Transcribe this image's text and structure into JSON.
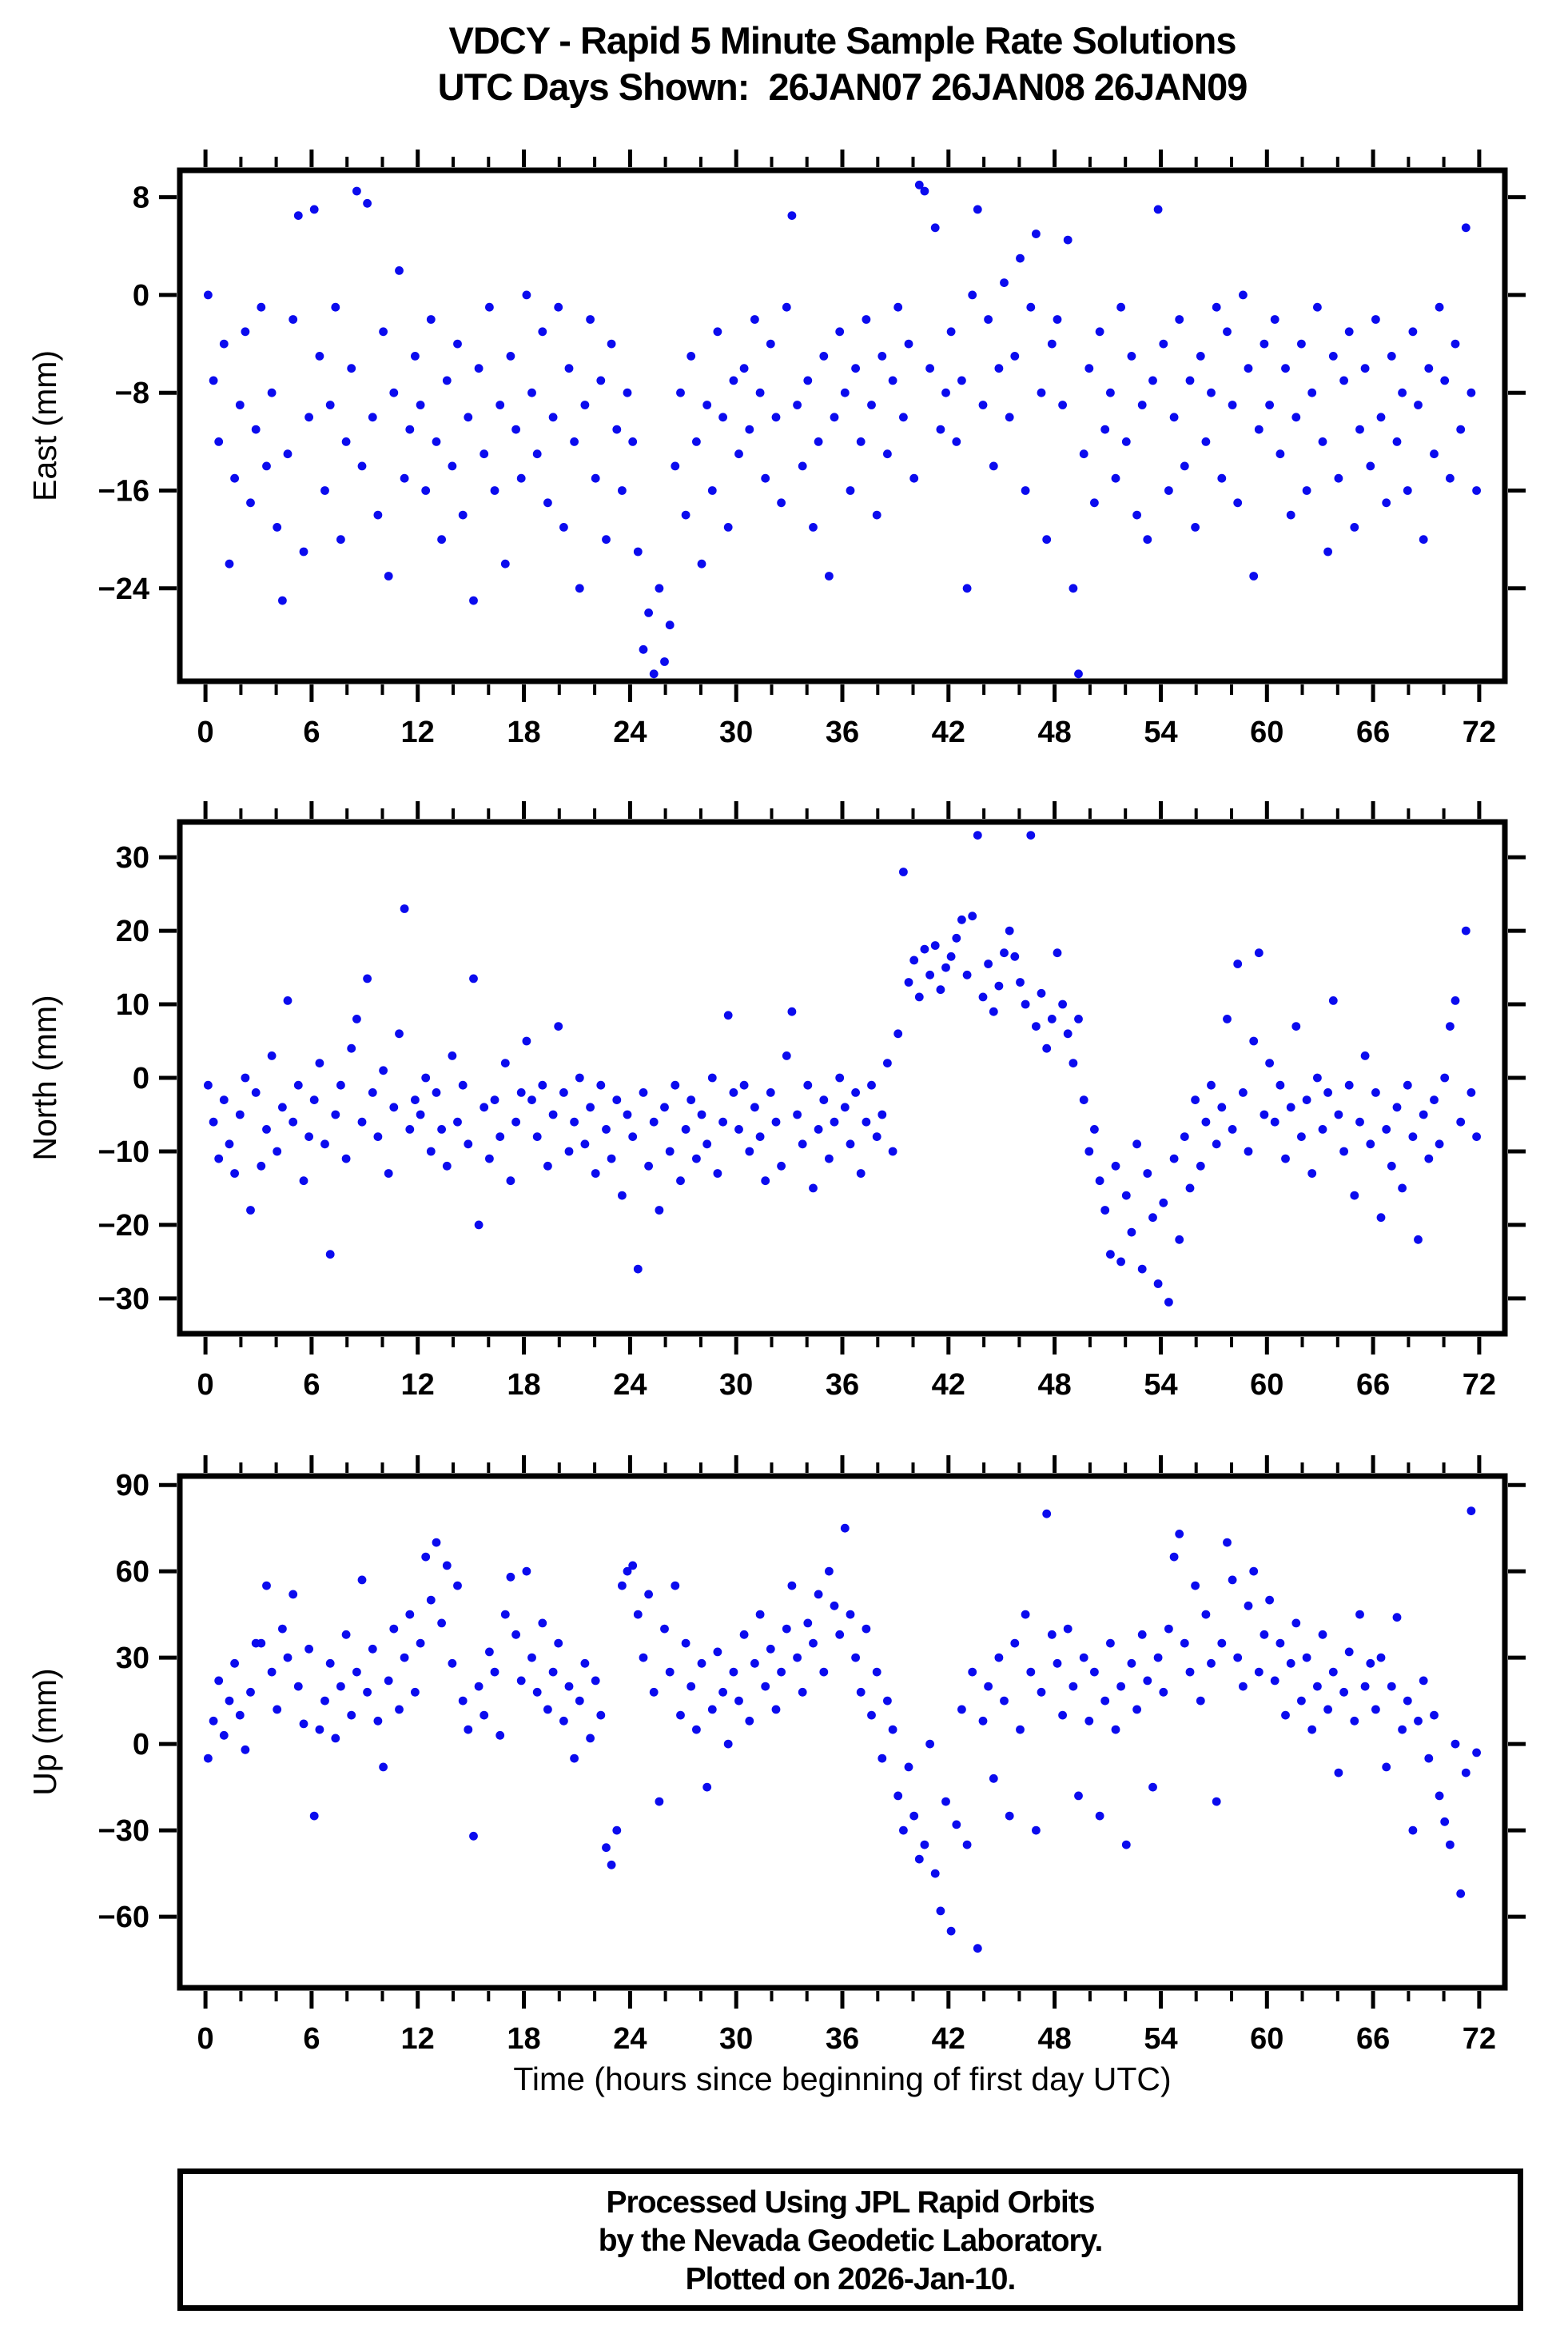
{
  "page": {
    "title_line1": "VDCY - Rapid 5 Minute Sample Rate Solutions",
    "title_line2": "UTC Days Shown:  26JAN07 26JAN08 26JAN09",
    "footer": {
      "line1": "Processed Using JPL Rapid Orbits",
      "line2": "by the Nevada Geodetic Laboratory.",
      "line3": "Plotted on 2026-Jan-10."
    }
  },
  "style": {
    "dot_color": "#0b0bee",
    "frame_color": "#000000",
    "background": "#ffffff"
  },
  "x_axis": {
    "lim": [
      -1.45,
      73.45
    ],
    "minor_step": 2,
    "major_ticks": [
      0,
      6,
      12,
      18,
      24,
      30,
      36,
      42,
      48,
      54,
      60,
      66,
      72
    ],
    "major_labels": [
      "0",
      "6",
      "12",
      "18",
      "24",
      "30",
      "36",
      "42",
      "48",
      "54",
      "60",
      "66",
      "72"
    ],
    "title": "Time (hours since beginning of first day UTC)"
  },
  "chart_data": [
    {
      "type": "scatter",
      "name": "east",
      "ylabel": "East (mm)",
      "ylim": [
        -31.6,
        10.2
      ],
      "yticks": [
        {
          "v": 8,
          "label": "8"
        },
        {
          "v": 0,
          "label": "0"
        },
        {
          "v": -8,
          "label": "−8"
        },
        {
          "v": -16,
          "label": "−16"
        },
        {
          "v": -24,
          "label": "−24"
        }
      ],
      "x_start": 0.15,
      "x_step": 0.3,
      "y": [
        0,
        -7,
        -12,
        -4,
        -22,
        -15,
        -9,
        -3,
        -17,
        -11,
        -1,
        -14,
        -8,
        -19,
        -25,
        -13,
        -2,
        6.5,
        -21,
        -10,
        7,
        -5,
        -16,
        -9,
        -1,
        -20,
        -12,
        -6,
        8.5,
        -14,
        7.5,
        -10,
        -18,
        -3,
        -23,
        -8,
        2,
        -15,
        -11,
        -5,
        -9,
        -16,
        -2,
        -12,
        -20,
        -7,
        -14,
        -4,
        -18,
        -10,
        -25,
        -6,
        -13,
        -1,
        -16,
        -9,
        -22,
        -5,
        -11,
        -15,
        0,
        -8,
        -13,
        -3,
        -17,
        -10,
        -1,
        -19,
        -6,
        -12,
        -24,
        -9,
        -2,
        -15,
        -7,
        -20,
        -4,
        -11,
        -16,
        -8,
        -12,
        -21,
        -29,
        -26,
        -31,
        -24,
        -30,
        -27,
        -14,
        -8,
        -18,
        -5,
        -12,
        -22,
        -9,
        -16,
        -3,
        -10,
        -19,
        -7,
        -13,
        -6,
        -11,
        -2,
        -8,
        -15,
        -4,
        -10,
        -17,
        -1,
        6.5,
        -9,
        -14,
        -7,
        -19,
        -12,
        -5,
        -23,
        -10,
        -3,
        -8,
        -16,
        -6,
        -12,
        -2,
        -9,
        -18,
        -5,
        -13,
        -7,
        -1,
        -10,
        -4,
        -15,
        9,
        8.5,
        -6,
        5.5,
        -11,
        -8,
        -3,
        -12,
        -7,
        -24,
        0,
        7,
        -9,
        -2,
        -14,
        -6,
        1,
        -10,
        -5,
        3,
        -16,
        -1,
        5,
        -8,
        -20,
        -4,
        -2,
        -9,
        4.5,
        -24,
        -31,
        -13,
        -6,
        -17,
        -3,
        -11,
        -8,
        -15,
        -1,
        -12,
        -5,
        -18,
        -9,
        -20,
        -7,
        7,
        -4,
        -16,
        -10,
        -2,
        -14,
        -7,
        -19,
        -5,
        -12,
        -8,
        -1,
        -15,
        -3,
        -9,
        -17,
        0,
        -6,
        -23,
        -11,
        -4,
        -9,
        -2,
        -13,
        -6,
        -18,
        -10,
        -4,
        -16,
        -8,
        -1,
        -12,
        -21,
        -5,
        -15,
        -7,
        -3,
        -19,
        -11,
        -6,
        -14,
        -2,
        -10,
        -17,
        -5,
        -12,
        -8,
        -16,
        -3,
        -9,
        -20,
        -6,
        -13,
        -1,
        -7,
        -15,
        -4,
        -11,
        5.5,
        -8,
        -16
      ]
    },
    {
      "type": "scatter",
      "name": "north",
      "ylabel": "North (mm)",
      "ylim": [
        -34.8,
        34.8
      ],
      "yticks": [
        {
          "v": 30,
          "label": "30"
        },
        {
          "v": 20,
          "label": "20"
        },
        {
          "v": 10,
          "label": "10"
        },
        {
          "v": 0,
          "label": "0"
        },
        {
          "v": -10,
          "label": "−10"
        },
        {
          "v": -20,
          "label": "−20"
        },
        {
          "v": -30,
          "label": "−30"
        }
      ],
      "x_start": 0.15,
      "x_step": 0.3,
      "y": [
        -1,
        -6,
        -11,
        -3,
        -9,
        -13,
        -5,
        0,
        -18,
        -2,
        -12,
        -7,
        3,
        -10,
        -4,
        10.5,
        -6,
        -1,
        -14,
        -8,
        -3,
        2,
        -9,
        -24,
        -5,
        -1,
        -11,
        4,
        8,
        -6,
        13.5,
        -2,
        -8,
        1,
        -13,
        -4,
        6,
        23,
        -7,
        -3,
        -5,
        0,
        -10,
        -2,
        -7,
        -12,
        3,
        -6,
        -1,
        -9,
        13.5,
        -20,
        -4,
        -11,
        -3,
        -8,
        2,
        -14,
        -6,
        -2,
        5,
        -3,
        -8,
        -1,
        -12,
        -5,
        7,
        -2,
        -10,
        -6,
        0,
        -9,
        -4,
        -13,
        -1,
        -7,
        -11,
        -3,
        -16,
        -5,
        -8,
        -26,
        -2,
        -12,
        -6,
        -18,
        -4,
        -10,
        -1,
        -14,
        -7,
        -3,
        -11,
        -5,
        -9,
        0,
        -13,
        -6,
        8.5,
        -2,
        -7,
        -1,
        -10,
        -4,
        -8,
        -14,
        -2,
        -6,
        -12,
        3,
        9,
        -5,
        -9,
        -1,
        -15,
        -7,
        -3,
        -11,
        -6,
        0,
        -4,
        -9,
        -2,
        -13,
        -6,
        -1,
        -8,
        -5,
        2,
        -10,
        6,
        28,
        13,
        16,
        11,
        17.5,
        14,
        18,
        12,
        15,
        16.5,
        19,
        21.5,
        14,
        22,
        33,
        11,
        15.5,
        9,
        12.5,
        17,
        20,
        16.5,
        13,
        10,
        33,
        7,
        11.5,
        4,
        8,
        17,
        10,
        6,
        2,
        8,
        -3,
        -10,
        -7,
        -14,
        -18,
        -24,
        -12,
        -25,
        -16,
        -21,
        -9,
        -26,
        -13,
        -19,
        -28,
        -17,
        -30.5,
        -11,
        -22,
        -8,
        -15,
        -3,
        -12,
        -6,
        -1,
        -9,
        -4,
        8,
        -7,
        15.5,
        -2,
        -10,
        5,
        17,
        -5,
        2,
        -6,
        -1,
        -11,
        -4,
        7,
        -8,
        -3,
        -13,
        0,
        -7,
        -2,
        10.5,
        -5,
        -10,
        -1,
        -16,
        -6,
        3,
        -9,
        -2,
        -19,
        -7,
        -12,
        -4,
        -15,
        -1,
        -8,
        -22,
        -5,
        -11,
        -3,
        -9,
        0,
        7,
        10.5,
        -6,
        20,
        -2,
        -8
      ]
    },
    {
      "type": "scatter",
      "name": "up",
      "ylabel": "Up (mm)",
      "xlabel": "Time (hours since beginning of first day UTC)",
      "ylim": [
        -84.7,
        93.1
      ],
      "yticks": [
        {
          "v": 90,
          "label": "90"
        },
        {
          "v": 60,
          "label": "60"
        },
        {
          "v": 30,
          "label": "30"
        },
        {
          "v": 0,
          "label": "0"
        },
        {
          "v": -30,
          "label": "−30"
        },
        {
          "v": -60,
          "label": "−60"
        }
      ],
      "x_start": 0.15,
      "x_step": 0.3,
      "y": [
        -5,
        8,
        22,
        3,
        15,
        28,
        10,
        -2,
        18,
        35,
        35,
        55,
        25,
        12,
        40,
        30,
        52,
        20,
        7,
        33,
        -25,
        5,
        15,
        28,
        2,
        20,
        38,
        10,
        25,
        57,
        18,
        33,
        8,
        -8,
        22,
        40,
        12,
        30,
        45,
        18,
        35,
        65,
        50,
        70,
        42,
        62,
        28,
        55,
        15,
        5,
        -32,
        20,
        10,
        32,
        25,
        3,
        45,
        58,
        38,
        22,
        60,
        30,
        18,
        42,
        12,
        25,
        35,
        8,
        20,
        -5,
        15,
        28,
        2,
        22,
        10,
        -36,
        -42,
        -30,
        55,
        60,
        62,
        45,
        30,
        52,
        18,
        -20,
        40,
        25,
        55,
        10,
        35,
        20,
        5,
        28,
        -15,
        12,
        32,
        18,
        0,
        25,
        15,
        38,
        8,
        28,
        45,
        20,
        33,
        12,
        25,
        40,
        55,
        30,
        18,
        42,
        35,
        52,
        25,
        60,
        48,
        38,
        75,
        45,
        30,
        18,
        40,
        10,
        25,
        -5,
        15,
        5,
        -18,
        -30,
        -8,
        -25,
        -40,
        -35,
        0,
        -45,
        -58,
        -20,
        -65,
        -28,
        12,
        -35,
        25,
        -71,
        8,
        20,
        -12,
        30,
        15,
        -25,
        35,
        5,
        45,
        25,
        -30,
        18,
        80,
        38,
        28,
        10,
        40,
        20,
        -18,
        30,
        8,
        25,
        -25,
        15,
        35,
        5,
        20,
        -35,
        28,
        12,
        38,
        22,
        -15,
        30,
        18,
        40,
        65,
        73,
        35,
        25,
        55,
        15,
        45,
        28,
        -20,
        35,
        70,
        57,
        30,
        20,
        48,
        60,
        25,
        38,
        50,
        22,
        35,
        10,
        28,
        42,
        15,
        30,
        5,
        20,
        38,
        12,
        25,
        -10,
        18,
        32,
        8,
        45,
        20,
        28,
        12,
        30,
        -8,
        20,
        44,
        5,
        15,
        -30,
        8,
        22,
        -5,
        10,
        -18,
        -27,
        -35,
        0,
        -52,
        -10,
        81,
        -3
      ]
    }
  ]
}
